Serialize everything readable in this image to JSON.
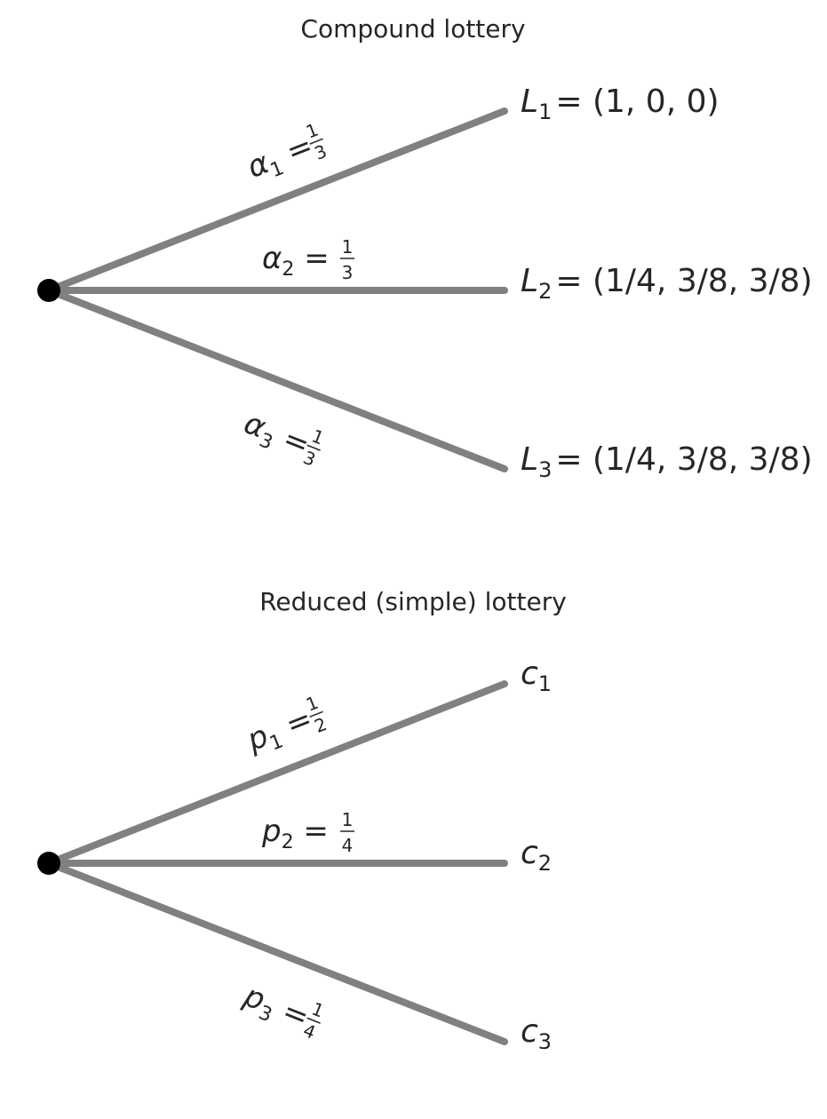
{
  "diagrams": [
    {
      "title": "Compound lottery",
      "branches": [
        {
          "prob_symbol": "α",
          "prob_index": "1",
          "prob_num": "1",
          "prob_den": "3",
          "outcome_symbol": "L",
          "outcome_index": "1",
          "outcome_value": "= (1, 0, 0)"
        },
        {
          "prob_symbol": "α",
          "prob_index": "2",
          "prob_num": "1",
          "prob_den": "3",
          "outcome_symbol": "L",
          "outcome_index": "2",
          "outcome_value": "= (1/4, 3/8, 3/8)"
        },
        {
          "prob_symbol": "α",
          "prob_index": "3",
          "prob_num": "1",
          "prob_den": "3",
          "outcome_symbol": "L",
          "outcome_index": "3",
          "outcome_value": "= (1/4, 3/8, 3/8)"
        }
      ]
    },
    {
      "title": "Reduced (simple) lottery",
      "branches": [
        {
          "prob_symbol": "p",
          "prob_index": "1",
          "prob_num": "1",
          "prob_den": "2",
          "outcome_symbol": "c",
          "outcome_index": "1"
        },
        {
          "prob_symbol": "p",
          "prob_index": "2",
          "prob_num": "1",
          "prob_den": "4",
          "outcome_symbol": "c",
          "outcome_index": "2"
        },
        {
          "prob_symbol": "p",
          "prob_index": "3",
          "prob_num": "1",
          "prob_den": "4",
          "outcome_symbol": "c",
          "outcome_index": "3"
        }
      ]
    }
  ],
  "colors": {
    "edge": "#808080",
    "node": "#000000",
    "text": "#262626"
  }
}
